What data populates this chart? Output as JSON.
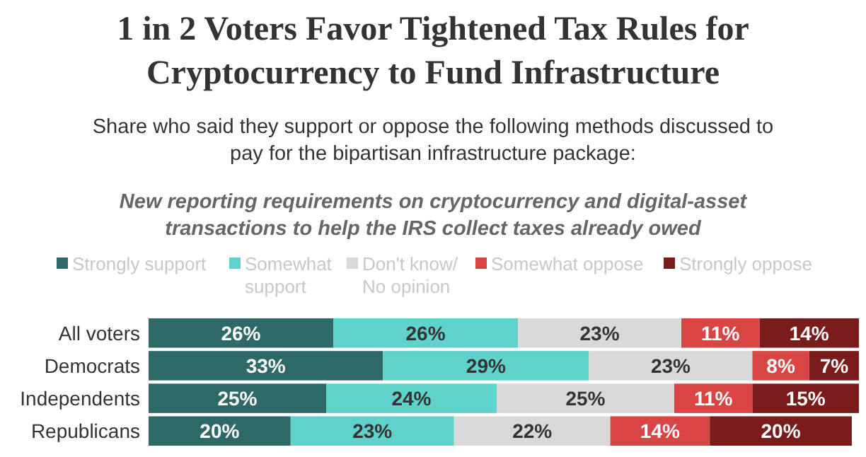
{
  "chart_data": {
    "type": "bar",
    "orientation": "horizontal",
    "stacked": true,
    "legend": "top",
    "title": "1 in 2 Voters Favor Tightened Tax Rules for\nCryptocurrency to Fund Infrastructure",
    "subtitle": "Share who said they support or oppose the following methods discussed to\npay for the bipartisan infrastructure package:",
    "annotations": [
      "New reporting requirements on cryptocurrency and digital-asset\ntransactions to help the IRS collect taxes already owed"
    ],
    "categories": [
      "All voters",
      "Democrats",
      "Independents",
      "Republicans"
    ],
    "series": [
      {
        "name": "Strongly support",
        "color": "#2d6a67",
        "values": [
          26,
          33,
          25,
          20
        ],
        "value_labels": [
          "26%",
          "33%",
          "25%",
          "20%"
        ]
      },
      {
        "name": "Somewhat\nsupport",
        "color": "#5fd3cb",
        "values": [
          26,
          29,
          24,
          23
        ],
        "value_labels": [
          "26%",
          "29%",
          "24%",
          "23%"
        ]
      },
      {
        "name": "Don't know/\nNo opinion",
        "color": "#d9d9d9",
        "values": [
          23,
          23,
          25,
          22
        ],
        "value_labels": [
          "23%",
          "23%",
          "25%",
          "22%"
        ]
      },
      {
        "name": "Somewhat oppose",
        "color": "#d94444",
        "values": [
          11,
          8,
          11,
          14
        ],
        "value_labels": [
          "11%",
          "8%",
          "11%",
          "14%"
        ]
      },
      {
        "name": "Strongly oppose",
        "color": "#7a1c1c",
        "values": [
          14,
          7,
          15,
          20
        ],
        "value_labels": [
          "14%",
          "7%",
          "15%",
          "20%"
        ]
      }
    ]
  }
}
